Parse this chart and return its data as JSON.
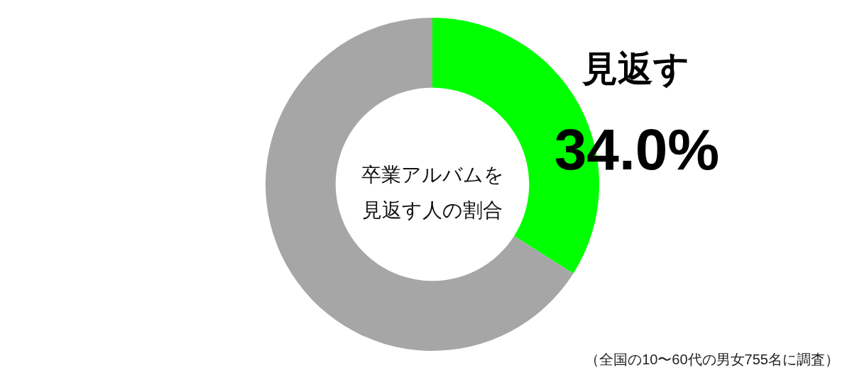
{
  "chart_data": {
    "type": "donut",
    "title": "卒業アルバムを見返す人の割合",
    "categories": [
      "見返す",
      null
    ],
    "values": [
      34.0,
      66.0
    ],
    "colors": [
      "#00ff00",
      "#a6a6a6"
    ],
    "value_labels": [
      "34.0%",
      null
    ],
    "annotations": [
      "（全国の10〜60代の男女755名に調査）"
    ]
  }
}
